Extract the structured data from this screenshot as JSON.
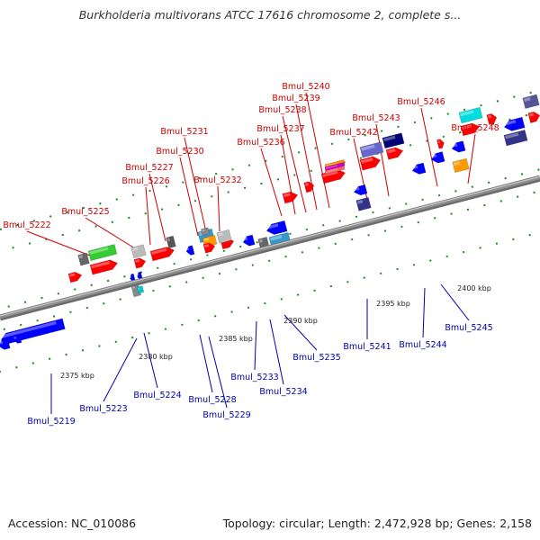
{
  "title": "Burkholderia multivorans ATCC 17616 chromosome 2, complete s...",
  "accession": "Accession: NC_010086",
  "stats": "Topology: circular; Length: 2,472,928 bp; Genes: 2,158",
  "colors": {
    "backbone": "#8f8f8f",
    "forward_label": "#cc0000",
    "reverse_label": "#0000aa",
    "guide_dots": "#228822",
    "forward_gene": "#ff0000",
    "reverse_gene": "#0000ff"
  },
  "scale_ticks": [
    "2375 kbp",
    "2380 kbp",
    "2385 kbp",
    "2390 kbp",
    "2395 kbp",
    "2400 kbp"
  ],
  "forward_labels": [
    "Bmul_5222",
    "Bmul_5225",
    "Bmul_5226",
    "Bmul_5227",
    "Bmul_5230",
    "Bmul_5231",
    "Bmul_5232",
    "Bmul_5236",
    "Bmul_5237",
    "Bmul_5238",
    "Bmul_5239",
    "Bmul_5240",
    "Bmul_5242",
    "Bmul_5243",
    "Bmul_5246",
    "Bmul_5248"
  ],
  "reverse_labels": [
    "Bmul_5219",
    "Bmul_5223",
    "Bmul_5224",
    "Bmul_5228",
    "Bmul_5229",
    "Bmul_5233",
    "Bmul_5234",
    "Bmul_5235",
    "Bmul_5241",
    "Bmul_5244",
    "Bmul_5245"
  ]
}
